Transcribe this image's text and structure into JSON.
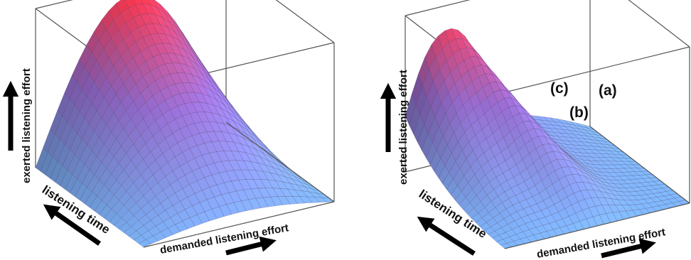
{
  "figure": {
    "left_panel": {
      "z_axis_label": "exerted listening effort",
      "y_axis_label": "listening time",
      "x_axis_label": "demanded listening effort"
    },
    "right_panel": {
      "z_axis_label": "exerted listening effort",
      "y_axis_label": "listening time",
      "x_axis_label": "demanded listening effort",
      "peak_labels": [
        "(a)",
        "(b)",
        "(c)"
      ]
    },
    "colors": {
      "surface_low": "#7fb8ff",
      "surface_mid": "#9b6fd6",
      "surface_high": "#ff2c35",
      "box_edge": "#555555",
      "mesh_line": "#3a2a4a",
      "arrow": "#000000"
    }
  }
}
